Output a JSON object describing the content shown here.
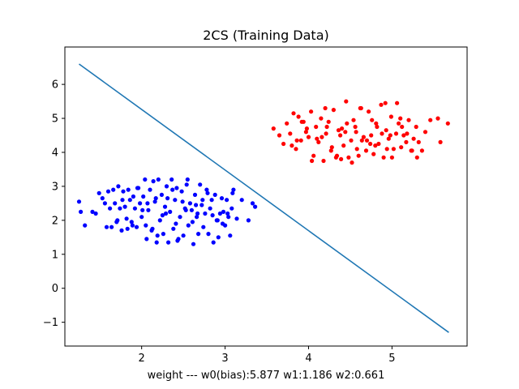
{
  "chart_data": {
    "type": "scatter",
    "title": "2CS (Training Data)",
    "xlabel": "weight  ---  w0(bias):5.877   w1:1.186   w2:0.661",
    "ylabel": "",
    "xlim": [
      1.08,
      5.9
    ],
    "ylim": [
      -1.7,
      7.1
    ],
    "xticks": [
      2,
      3,
      4,
      5
    ],
    "yticks": [
      -1,
      0,
      1,
      2,
      3,
      4,
      5,
      6
    ],
    "xtick_labels": [
      "2",
      "3",
      "4",
      "5"
    ],
    "ytick_labels": [
      "−1",
      "0",
      "1",
      "2",
      "3",
      "4",
      "5",
      "6"
    ],
    "grid": false,
    "legend": "none",
    "series": [
      {
        "kind": "line",
        "color": "#1f77b4",
        "x": [
          1.25,
          5.68
        ],
        "y": [
          6.6,
          -1.3
        ]
      },
      {
        "kind": "points",
        "color": "#0000ff",
        "x": [
          1.25,
          1.27,
          1.32,
          1.41,
          1.45,
          1.49,
          1.53,
          1.56,
          1.58,
          1.6,
          1.62,
          1.64,
          1.66,
          1.68,
          1.7,
          1.72,
          1.74,
          1.76,
          1.78,
          1.8,
          1.82,
          1.84,
          1.86,
          1.88,
          1.9,
          1.92,
          1.94,
          1.96,
          1.98,
          2.0,
          2.02,
          2.04,
          2.06,
          2.08,
          2.1,
          2.12,
          2.14,
          2.16,
          2.18,
          2.2,
          2.22,
          2.24,
          2.26,
          2.28,
          2.3,
          2.32,
          2.34,
          2.36,
          2.38,
          2.4,
          2.42,
          2.44,
          2.46,
          2.48,
          2.5,
          2.52,
          2.54,
          2.56,
          2.58,
          2.6,
          2.62,
          2.64,
          2.66,
          2.68,
          2.7,
          2.72,
          2.74,
          2.76,
          2.78,
          2.8,
          2.82,
          2.84,
          2.86,
          2.88,
          2.9,
          2.92,
          2.94,
          2.96,
          2.98,
          3.0,
          3.02,
          3.04,
          3.06,
          3.08,
          3.1,
          3.14,
          3.2,
          3.28,
          3.33,
          3.36,
          1.71,
          1.83,
          1.95,
          2.07,
          2.19,
          2.31,
          2.43,
          2.55,
          2.67,
          2.79,
          2.91,
          3.03,
          1.77,
          1.89,
          2.01,
          2.13,
          2.25,
          2.37,
          2.49,
          2.61,
          2.73,
          2.85,
          2.97,
          3.09,
          2.05,
          2.17,
          2.29,
          2.41,
          2.53,
          2.65
        ],
        "y": [
          2.55,
          2.25,
          1.85,
          2.25,
          2.2,
          2.8,
          2.65,
          2.5,
          1.8,
          2.85,
          2.35,
          1.8,
          2.9,
          2.5,
          1.95,
          3.0,
          2.35,
          1.7,
          2.85,
          2.4,
          2.05,
          2.9,
          2.6,
          1.95,
          2.7,
          2.35,
          1.8,
          2.95,
          2.5,
          2.1,
          2.7,
          3.2,
          1.45,
          2.3,
          2.9,
          1.7,
          3.15,
          2.55,
          1.35,
          3.2,
          2.0,
          2.75,
          1.6,
          2.4,
          3.0,
          1.35,
          2.25,
          3.2,
          1.75,
          2.6,
          2.95,
          1.45,
          2.1,
          2.85,
          1.55,
          2.35,
          3.05,
          1.85,
          2.5,
          2.3,
          1.3,
          2.75,
          2.1,
          1.6,
          3.05,
          2.45,
          1.8,
          2.2,
          2.9,
          1.6,
          2.35,
          2.6,
          1.35,
          2.75,
          2.0,
          1.5,
          2.2,
          2.65,
          2.25,
          1.85,
          2.6,
          2.1,
          1.55,
          2.35,
          2.9,
          2.05,
          2.6,
          2.0,
          2.5,
          2.4,
          2.0,
          1.75,
          2.95,
          2.5,
          1.55,
          2.65,
          1.4,
          3.2,
          2.2,
          2.8,
          2.0,
          2.2,
          2.6,
          1.85,
          2.3,
          1.75,
          2.15,
          2.9,
          2.55,
          1.95,
          2.6,
          2.15,
          1.9,
          2.8,
          1.85,
          2.65,
          2.2,
          1.9,
          2.3,
          2.45
        ]
      },
      {
        "kind": "points",
        "color": "#ff0000",
        "x": [
          3.58,
          3.65,
          3.7,
          3.74,
          3.78,
          3.82,
          3.85,
          3.88,
          3.91,
          3.94,
          3.97,
          4.0,
          4.03,
          4.06,
          4.09,
          4.12,
          4.15,
          4.18,
          4.21,
          4.24,
          4.27,
          4.3,
          4.33,
          4.36,
          4.39,
          4.42,
          4.45,
          4.48,
          4.51,
          4.54,
          4.57,
          4.6,
          4.63,
          4.66,
          4.69,
          4.72,
          4.75,
          4.78,
          4.81,
          4.84,
          4.87,
          4.9,
          4.93,
          4.96,
          4.99,
          5.02,
          5.05,
          5.08,
          5.11,
          5.14,
          5.17,
          5.2,
          5.23,
          5.26,
          5.29,
          5.32,
          5.36,
          5.4,
          5.46,
          5.55,
          5.58,
          5.67,
          3.8,
          3.92,
          4.04,
          4.16,
          4.28,
          4.4,
          4.52,
          4.64,
          4.76,
          4.88,
          5.0,
          5.12,
          5.24,
          3.86,
          3.98,
          4.1,
          4.22,
          4.34,
          4.46,
          4.58,
          4.7,
          4.82,
          4.94,
          5.06,
          5.18,
          5.3,
          4.2,
          4.38,
          4.56,
          4.74,
          4.92,
          5.1,
          4.44,
          4.62,
          4.8,
          4.98
        ],
        "y": [
          4.7,
          4.5,
          4.25,
          4.85,
          4.55,
          5.15,
          4.1,
          5.05,
          4.35,
          4.9,
          4.6,
          4.45,
          5.2,
          3.9,
          4.75,
          4.3,
          5.0,
          3.75,
          4.55,
          4.9,
          4.05,
          5.25,
          3.85,
          4.65,
          3.8,
          4.2,
          5.5,
          3.85,
          4.35,
          4.95,
          4.6,
          3.9,
          5.3,
          4.45,
          4.05,
          5.2,
          4.5,
          3.95,
          4.85,
          4.25,
          5.4,
          3.85,
          4.65,
          4.4,
          5.05,
          4.1,
          4.55,
          4.85,
          4.15,
          4.5,
          4.3,
          4.95,
          4.05,
          4.4,
          4.75,
          4.3,
          4.05,
          4.6,
          4.95,
          5.0,
          4.3,
          4.85,
          4.2,
          4.9,
          3.75,
          4.45,
          4.15,
          4.7,
          3.7,
          4.35,
          4.95,
          4.55,
          3.85,
          4.75,
          4.05,
          4.35,
          4.7,
          4.4,
          4.75,
          3.9,
          4.85,
          4.1,
          4.35,
          4.75,
          4.1,
          5.45,
          4.55,
          3.85,
          5.3,
          4.5,
          4.75,
          4.25,
          5.45,
          5.0,
          4.6,
          5.3,
          4.2,
          4.5
        ]
      }
    ]
  }
}
